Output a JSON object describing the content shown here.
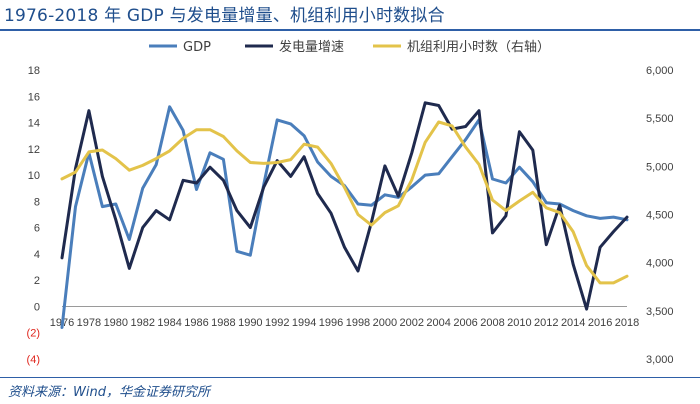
{
  "header": {
    "title": "1976-2018 年 GDP 与发电量增量、机组利用小时数拟合"
  },
  "footer": {
    "source": "资料来源：Wind，华金证券研究所"
  },
  "colors": {
    "gdp": "#4a7ebb",
    "power": "#1f2a4e",
    "hours": "#e3c34a",
    "negative_tick": "#e0261d",
    "axis_text": "#404040",
    "rule": "#2e5fa7"
  },
  "chart_data": {
    "type": "line",
    "x": [
      1976,
      1977,
      1978,
      1979,
      1980,
      1981,
      1982,
      1983,
      1984,
      1985,
      1986,
      1987,
      1988,
      1989,
      1990,
      1991,
      1992,
      1993,
      1994,
      1995,
      1996,
      1997,
      1998,
      1999,
      2000,
      2001,
      2002,
      2003,
      2004,
      2005,
      2006,
      2007,
      2008,
      2009,
      2010,
      2011,
      2012,
      2013,
      2014,
      2015,
      2016,
      2017,
      2018
    ],
    "x_tick_labels": [
      "1976",
      "1978",
      "1980",
      "1982",
      "1984",
      "1986",
      "1988",
      "1990",
      "1992",
      "1994",
      "1996",
      "1998",
      "2000",
      "2002",
      "2004",
      "2006",
      "2008",
      "2010",
      "2012",
      "2014",
      "2016",
      "2018"
    ],
    "y_left": {
      "lim": [
        -4,
        18
      ],
      "ticks": [
        18,
        16,
        14,
        12,
        10,
        8,
        6,
        4,
        2,
        0,
        -2,
        -4
      ],
      "tick_labels": [
        "18",
        "16",
        "14",
        "12",
        "10",
        "8",
        "6",
        "4",
        "2",
        "0",
        "(2)",
        "(4)"
      ]
    },
    "y_right": {
      "lim": [
        3000,
        6000
      ],
      "ticks": [
        6000,
        5500,
        5000,
        4500,
        4000,
        3500,
        3000
      ],
      "tick_labels": [
        "6,000",
        "5,500",
        "5,000",
        "4,500",
        "4,000",
        "3,500",
        "3,000"
      ]
    },
    "legend_position": "top",
    "series": [
      {
        "name": "GDP",
        "axis": "left",
        "values": [
          -1.6,
          7.6,
          11.7,
          7.6,
          7.8,
          5.1,
          9.0,
          10.8,
          15.2,
          13.4,
          8.9,
          11.7,
          11.2,
          4.2,
          3.9,
          9.3,
          14.2,
          13.9,
          13.0,
          11.0,
          9.9,
          9.2,
          7.8,
          7.7,
          8.5,
          8.3,
          9.1,
          10.0,
          10.1,
          11.4,
          12.7,
          14.2,
          9.7,
          9.4,
          10.6,
          9.5,
          7.9,
          7.8,
          7.3,
          6.9,
          6.7,
          6.8,
          6.6
        ]
      },
      {
        "name": "发电量增速",
        "axis": "left",
        "values": [
          3.7,
          10.5,
          14.9,
          9.9,
          6.6,
          2.9,
          6.0,
          7.3,
          6.6,
          9.6,
          9.4,
          10.6,
          9.6,
          7.3,
          6.0,
          9.1,
          11.1,
          9.9,
          11.4,
          8.6,
          7.1,
          4.5,
          2.7,
          6.4,
          10.7,
          8.4,
          11.7,
          15.5,
          15.3,
          13.5,
          13.7,
          14.9,
          5.6,
          6.9,
          13.3,
          11.9,
          4.7,
          7.7,
          3.2,
          -0.2,
          4.5,
          5.7,
          6.8
        ]
      },
      {
        "name": "机组利用小时数（右轴）",
        "axis": "right",
        "values": [
          4870,
          4940,
          5150,
          5170,
          5080,
          4960,
          5010,
          5080,
          5160,
          5290,
          5380,
          5380,
          5310,
          5160,
          5040,
          5030,
          5040,
          5070,
          5230,
          5200,
          5030,
          4780,
          4500,
          4390,
          4520,
          4590,
          4860,
          5250,
          5460,
          5420,
          5200,
          5020,
          4650,
          4540,
          4640,
          4730,
          4570,
          4520,
          4320,
          3970,
          3790,
          3790,
          3860
        ]
      }
    ]
  }
}
